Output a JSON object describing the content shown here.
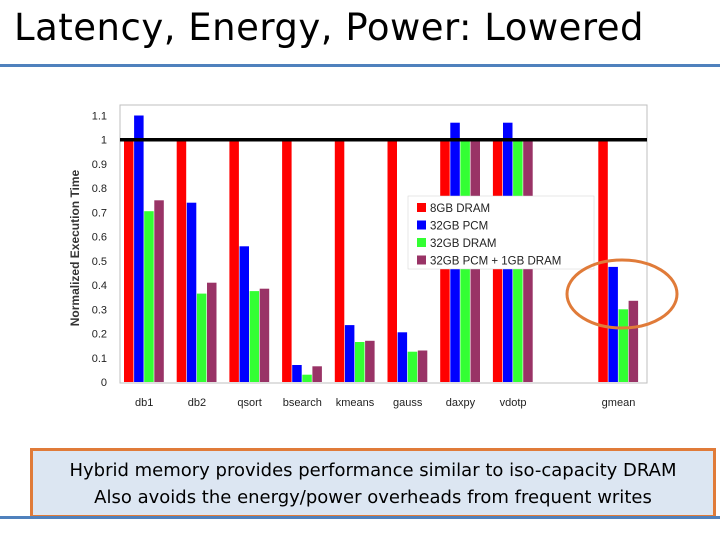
{
  "slide": {
    "title": "Latency, Energy, Power: Lowered",
    "caption_lines": [
      "Hybrid memory provides performance similar to iso-capacity DRAM",
      "Also avoids the energy/power overheads from frequent writes"
    ]
  },
  "colors": {
    "title_rule": "#4f81bd",
    "caption_border": "#e07b39",
    "caption_fill": "#dce6f2",
    "highlight_circle": "#e07b39"
  },
  "chart_data": {
    "type": "bar",
    "ylabel": "Normalized Execution Time",
    "xlabel": "",
    "ylim": [
      0,
      1.1
    ],
    "yticks": [
      0,
      0.1,
      0.2,
      0.3,
      0.4,
      0.5,
      0.6,
      0.7,
      0.8,
      0.9,
      1,
      1.1
    ],
    "ytick_labels": [
      "0",
      "0.1",
      "0.2",
      "0.3",
      "0.4",
      "0.5",
      "0.6",
      "0.7",
      "0.8",
      "0.9",
      "1",
      "1.1"
    ],
    "reference_line": 1.0,
    "grid": false,
    "legend_position": "center-right",
    "categories": [
      "db1",
      "db2",
      "qsort",
      "bsearch",
      "kmeans",
      "gauss",
      "daxpy",
      "vdotp",
      "",
      "gmean"
    ],
    "series": [
      {
        "name": "8GB DRAM",
        "color": "#ff0000",
        "values": [
          1,
          1,
          1,
          1,
          1,
          1,
          1,
          1,
          null,
          1
        ]
      },
      {
        "name": "32GB PCM",
        "color": "#0000ff",
        "values": [
          1.1,
          0.74,
          0.56,
          0.07,
          0.235,
          0.205,
          1.07,
          1.07,
          null,
          0.475
        ]
      },
      {
        "name": "32GB DRAM",
        "color": "#33ff33",
        "values": [
          0.705,
          0.365,
          0.375,
          0.03,
          0.165,
          0.125,
          1,
          1,
          null,
          0.3
        ]
      },
      {
        "name": "32GB PCM + 1GB DRAM",
        "color": "#993366",
        "values": [
          0.75,
          0.41,
          0.385,
          0.065,
          0.17,
          0.13,
          1,
          1,
          null,
          0.335
        ]
      }
    ]
  }
}
